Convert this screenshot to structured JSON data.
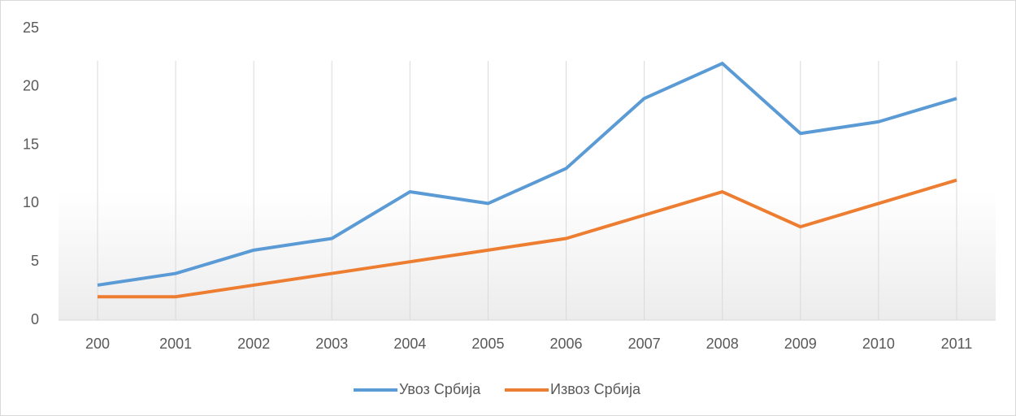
{
  "chart_data": {
    "type": "line",
    "categories": [
      "200",
      "2001",
      "2002",
      "2003",
      "2004",
      "2005",
      "2006",
      "2007",
      "2008",
      "2009",
      "2010",
      "2011"
    ],
    "series": [
      {
        "name": "Увоз Србија",
        "color": "#5b9bd5",
        "values": [
          3,
          4,
          6,
          7,
          11,
          10,
          13,
          19,
          22,
          16,
          17,
          19
        ]
      },
      {
        "name": "Извоз Србија",
        "color": "#ed7d31",
        "values": [
          2,
          2,
          3,
          4,
          5,
          6,
          7,
          9,
          11,
          8,
          10,
          12
        ]
      }
    ],
    "ylim": [
      0,
      25
    ],
    "yticks": [
      0,
      5,
      10,
      15,
      20,
      25
    ],
    "grid": true,
    "legend": "bottom"
  }
}
